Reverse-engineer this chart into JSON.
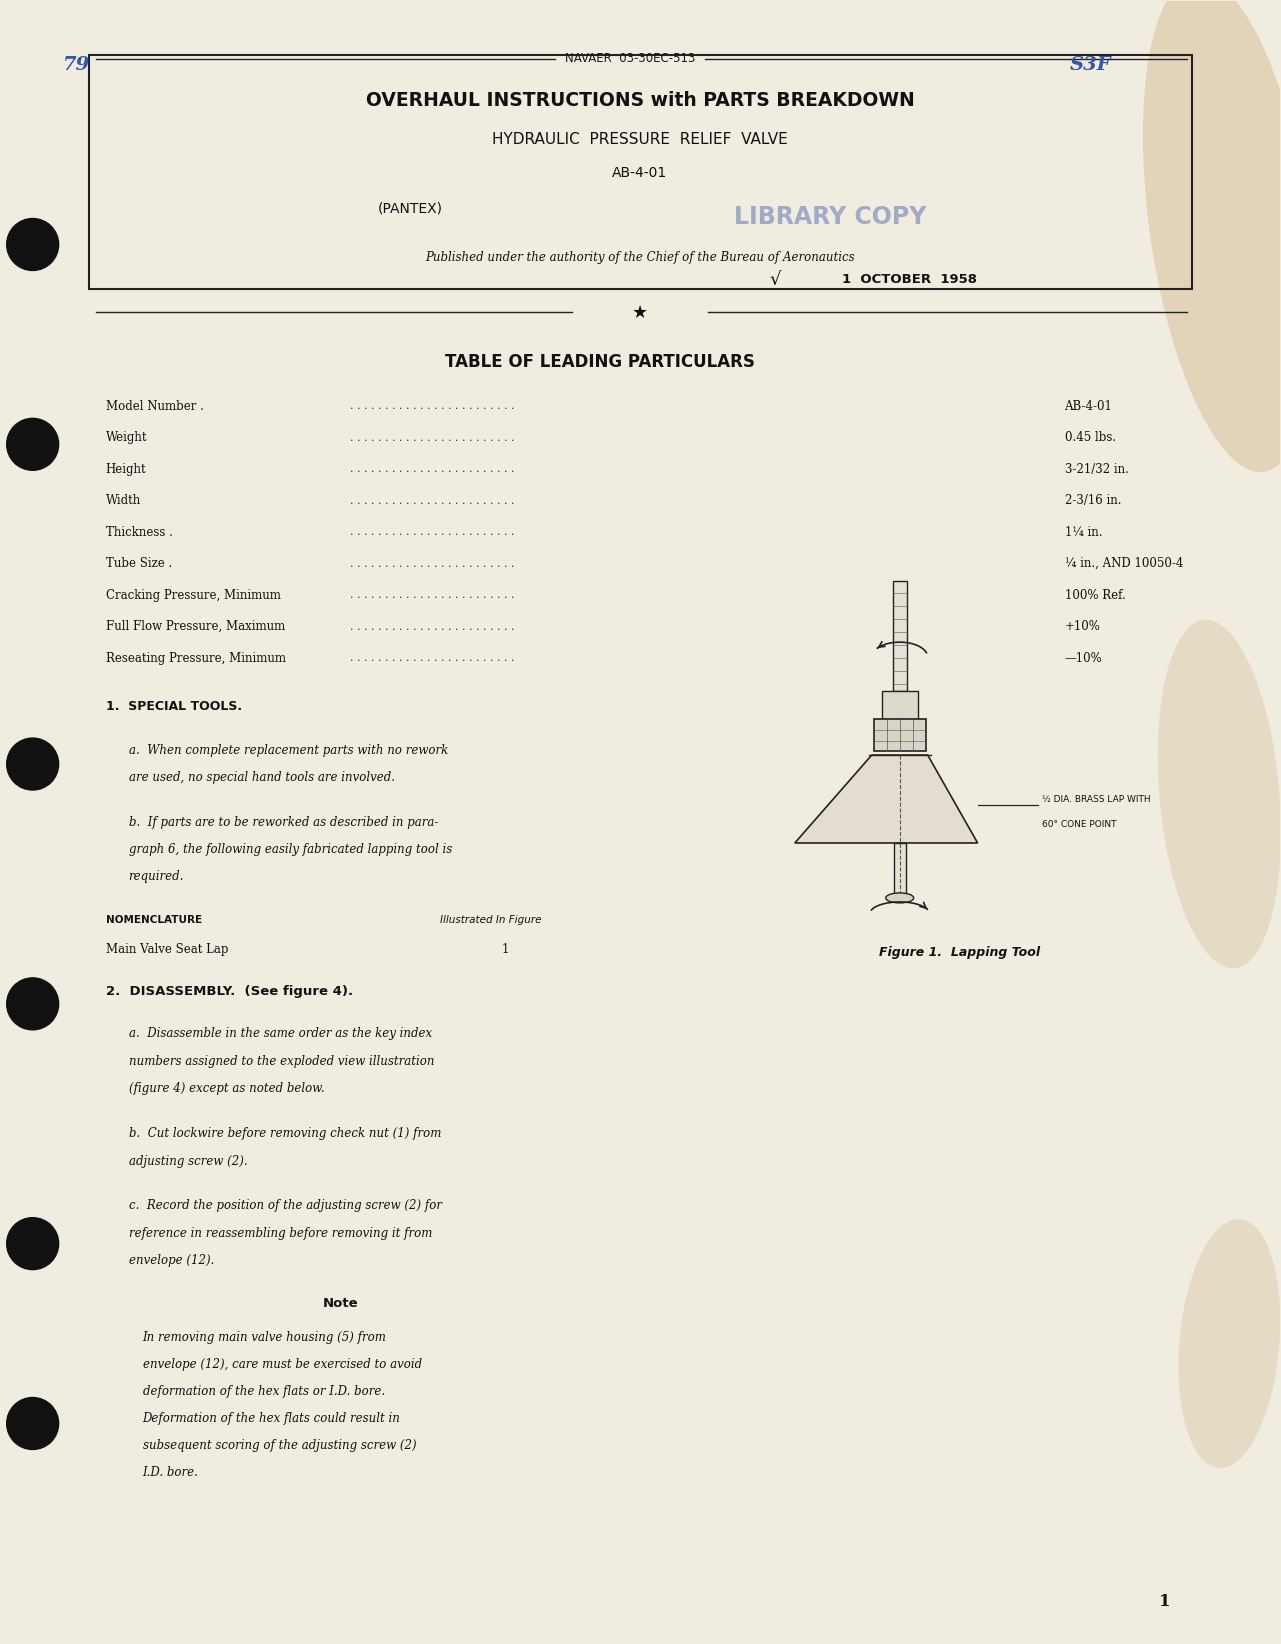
{
  "bg_color": "#f0ece0",
  "text_color": "#1a1a1a",
  "page_number": "1",
  "handwritten_top_left": "79",
  "handwritten_top_right": "S3F",
  "navaer": "NAVAER  03-30EC-513",
  "title_line1": "OVERHAUL INSTRUCTIONS with PARTS BREAKDOWN",
  "title_line2": "HYDRAULIC  PRESSURE  RELIEF  VALVE",
  "title_line3": "AB-4-01",
  "title_line4": "(PANTEX)",
  "library_stamp": "LIBRARY COPY",
  "authority_text": "Published under the authority of the Chief of the Bureau of Aeronautics",
  "date_text": "1  OCTOBER  1958",
  "table_title": "TABLE OF LEADING PARTICULARS",
  "table_rows": [
    [
      "Model Number .",
      "AB-4-01"
    ],
    [
      "Weight",
      "0.45 lbs."
    ],
    [
      "Height",
      "3-21/32 in."
    ],
    [
      "Width",
      "2-3/16 in."
    ],
    [
      "Thickness .",
      "1¼ in."
    ],
    [
      "Tube Size .",
      "¼ in., AND 10050-4"
    ],
    [
      "Cracking Pressure, Minimum",
      "100% Ref."
    ],
    [
      "Full Flow Pressure, Maximum",
      "+10%"
    ],
    [
      "Reseating Pressure, Minimum",
      "—10%"
    ]
  ],
  "section1_title": "1.  SPECIAL TOOLS.",
  "section1a": "a.  When complete replacement parts with no rework\nare used, no special hand tools are involved.",
  "section1b": "b.  If parts are to be reworked as described in para-\ngraph 6, the following easily fabricated lapping tool is\nrequired.",
  "nomenclature_header": "NOMENCLATURE",
  "illustrated_header": "Illustrated In Figure",
  "nomenclature_item": "Main Valve Seat Lap",
  "illustrated_num": "1",
  "section2_title": "2.  DISASSEMBLY.  (See figure 4).",
  "section2a": "a.  Disassemble in the same order as the key index\nnumbers assigned to the exploded view illustration\n(figure 4) except as noted below.",
  "section2b": "b.  Cut lockwire before removing check nut (1) from\nadjusting screw (2).",
  "section2c": "c.  Record the position of the adjusting screw (2) for\nreference in reassembling before removing it from\nenvelope (12).",
  "note_title": "Note",
  "note_text": "In removing main valve housing (5) from\nenvelope (12), care must be exercised to avoid\ndeformation of the hex flats or I.D. bore.\nDeformation of the hex flats could result in\nsubsequent scoring of the adjusting screw (2)\nI.D. bore.",
  "figure_caption": "Figure 1.  Lapping Tool",
  "label_line1": "½ DIA. BRASS LAP WITH",
  "label_line2": "60° CONE POINT",
  "stain_color": "#c8a870",
  "hole_color": "#111111",
  "stamp_color": "#7788bb"
}
